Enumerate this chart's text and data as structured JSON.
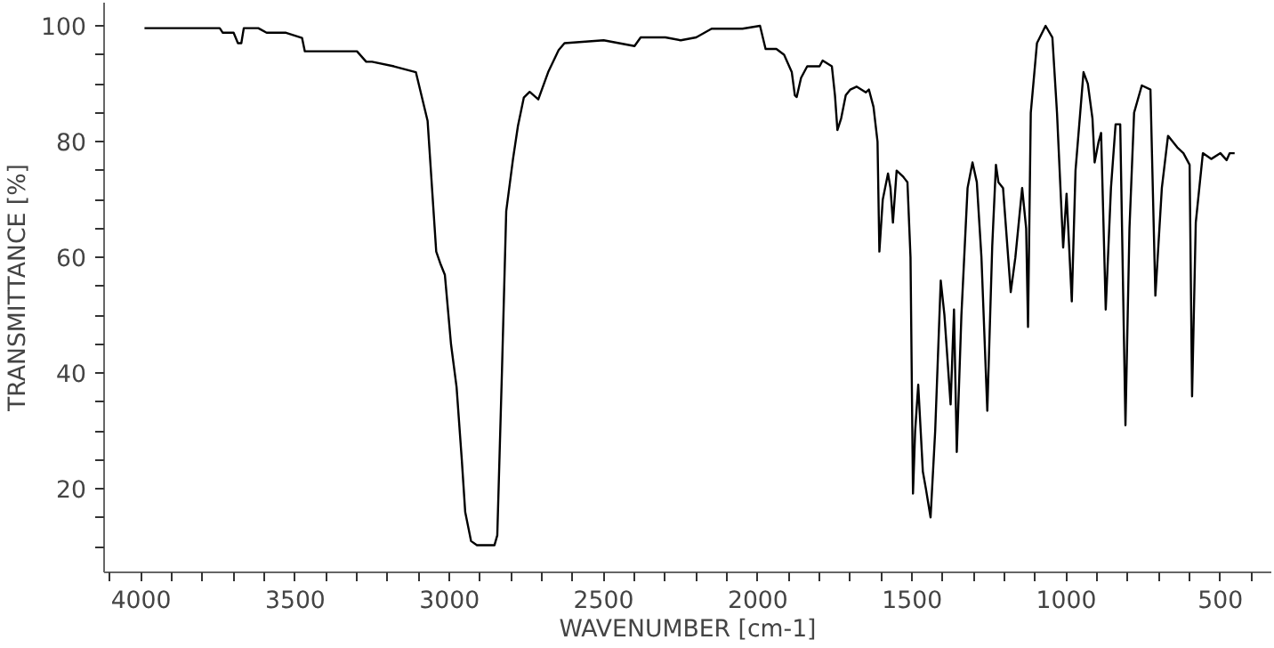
{
  "chart_data": {
    "type": "line",
    "xlabel": "WAVENUMBER [cm-1]",
    "ylabel": "TRANSMITTANCE [%]",
    "xlim": [
      4120,
      335
    ],
    "ylim": [
      5.6,
      104
    ],
    "xticks": [
      {
        "value": 4100,
        "label": null
      },
      4000,
      {
        "value": 3900,
        "label": null
      },
      {
        "value": 3800,
        "label": null
      },
      {
        "value": 3700,
        "label": null
      },
      {
        "value": 3600,
        "label": null
      },
      3500,
      {
        "value": 3400,
        "label": null
      },
      {
        "value": 3300,
        "label": null
      },
      {
        "value": 3200,
        "label": null
      },
      {
        "value": 3100,
        "label": null
      },
      3000,
      {
        "value": 2900,
        "label": null
      },
      {
        "value": 2800,
        "label": null
      },
      {
        "value": 2700,
        "label": null
      },
      {
        "value": 2600,
        "label": null
      },
      2500,
      {
        "value": 2400,
        "label": null
      },
      {
        "value": 2300,
        "label": null
      },
      {
        "value": 2200,
        "label": null
      },
      {
        "value": 2100,
        "label": null
      },
      2000,
      {
        "value": 1900,
        "label": null
      },
      {
        "value": 1800,
        "label": null
      },
      {
        "value": 1700,
        "label": null
      },
      {
        "value": 1600,
        "label": null
      },
      1500,
      {
        "value": 1400,
        "label": null
      },
      {
        "value": 1300,
        "label": null
      },
      {
        "value": 1200,
        "label": null
      },
      {
        "value": 1100,
        "label": null
      },
      1000,
      {
        "value": 900,
        "label": null
      },
      {
        "value": 800,
        "label": null
      },
      {
        "value": 700,
        "label": null
      },
      {
        "value": 600,
        "label": null
      },
      500,
      {
        "value": 400,
        "label": null
      }
    ],
    "yticks": [
      {
        "value": 10,
        "label": null
      },
      {
        "value": 15,
        "label": null
      },
      20,
      {
        "value": 25,
        "label": null
      },
      {
        "value": 30,
        "label": null
      },
      {
        "value": 35,
        "label": null
      },
      40,
      {
        "value": 45,
        "label": null
      },
      {
        "value": 50,
        "label": null
      },
      {
        "value": 55,
        "label": null
      },
      60,
      {
        "value": 65,
        "label": null
      },
      {
        "value": 70,
        "label": null
      },
      {
        "value": 75,
        "label": null
      },
      80,
      {
        "value": 85,
        "label": null
      },
      {
        "value": 90,
        "label": null
      },
      {
        "value": 95,
        "label": null
      },
      100
    ],
    "series": [
      {
        "color": "#000000",
        "x": [
          3989,
          3745,
          3735,
          3700,
          3686,
          3675,
          3667,
          3620,
          3593,
          3530,
          3478,
          3469,
          3400,
          3300,
          3270,
          3251,
          3180,
          3109,
          3071,
          3043,
          3030,
          3015,
          2995,
          2977,
          2960,
          2949,
          2930,
          2911,
          2880,
          2854,
          2845,
          2830,
          2816,
          2794,
          2778,
          2759,
          2740,
          2712,
          2680,
          2646,
          2627,
          2500,
          2450,
          2400,
          2380,
          2300,
          2250,
          2200,
          2150,
          2050,
          1993,
          1975,
          1940,
          1915,
          1890,
          1880,
          1874,
          1860,
          1840,
          1800,
          1790,
          1760,
          1750,
          1742,
          1730,
          1715,
          1700,
          1680,
          1650,
          1640,
          1625,
          1612,
          1606,
          1595,
          1578,
          1570,
          1562,
          1550,
          1530,
          1515,
          1505,
          1497,
          1490,
          1480,
          1472,
          1465,
          1455,
          1440,
          1425,
          1407,
          1395,
          1375,
          1364,
          1360,
          1355,
          1340,
          1320,
          1304,
          1290,
          1275,
          1256,
          1240,
          1228,
          1220,
          1205,
          1180,
          1165,
          1143,
          1130,
          1124,
          1115,
          1095,
          1067,
          1045,
          1030,
          1010,
          999,
          982,
          970,
          944,
          930,
          915,
          908,
          895,
          887,
          872,
          855,
          840,
          825,
          808,
          795,
          780,
          755,
          727,
          711,
          690,
          670,
          640,
          620,
          600,
          592,
          580,
          557,
          530,
          500,
          480,
          470,
          454
        ],
        "values": [
          99.6,
          99.6,
          98.8,
          98.8,
          97,
          97,
          99.6,
          99.6,
          98.8,
          98.8,
          97.9,
          95.6,
          95.6,
          95.6,
          93.8,
          93.8,
          93,
          92,
          83.6,
          61,
          59,
          57,
          45,
          37.6,
          25,
          16,
          11,
          10.3,
          10.3,
          10.3,
          12,
          40,
          68,
          77,
          82.7,
          87.6,
          88.6,
          87.3,
          92,
          95.8,
          97,
          97.5,
          97,
          96.5,
          98,
          98,
          97.5,
          98,
          99.5,
          99.5,
          100,
          96,
          96,
          95,
          92,
          88,
          87.7,
          91,
          93,
          93,
          94,
          93,
          88,
          82,
          84,
          88,
          89,
          89.5,
          88.5,
          89,
          86,
          80,
          61,
          70,
          74.5,
          72,
          66,
          75,
          74,
          73,
          60,
          19.2,
          30,
          38,
          30,
          23,
          20,
          15.1,
          30,
          56,
          50,
          34.6,
          51,
          40,
          26.4,
          50,
          72,
          76.4,
          73,
          60,
          33.5,
          62,
          76,
          73,
          72,
          54,
          60,
          72,
          65,
          48,
          85,
          97,
          100,
          98,
          85,
          61.7,
          71,
          52.4,
          75,
          92,
          90,
          84,
          76.4,
          80,
          81.5,
          51,
          72,
          83,
          83,
          31,
          65,
          85,
          89.7,
          89,
          53.4,
          72,
          81,
          79,
          78,
          76,
          36,
          66,
          78,
          77,
          78,
          76.8,
          78,
          78
        ]
      }
    ]
  }
}
